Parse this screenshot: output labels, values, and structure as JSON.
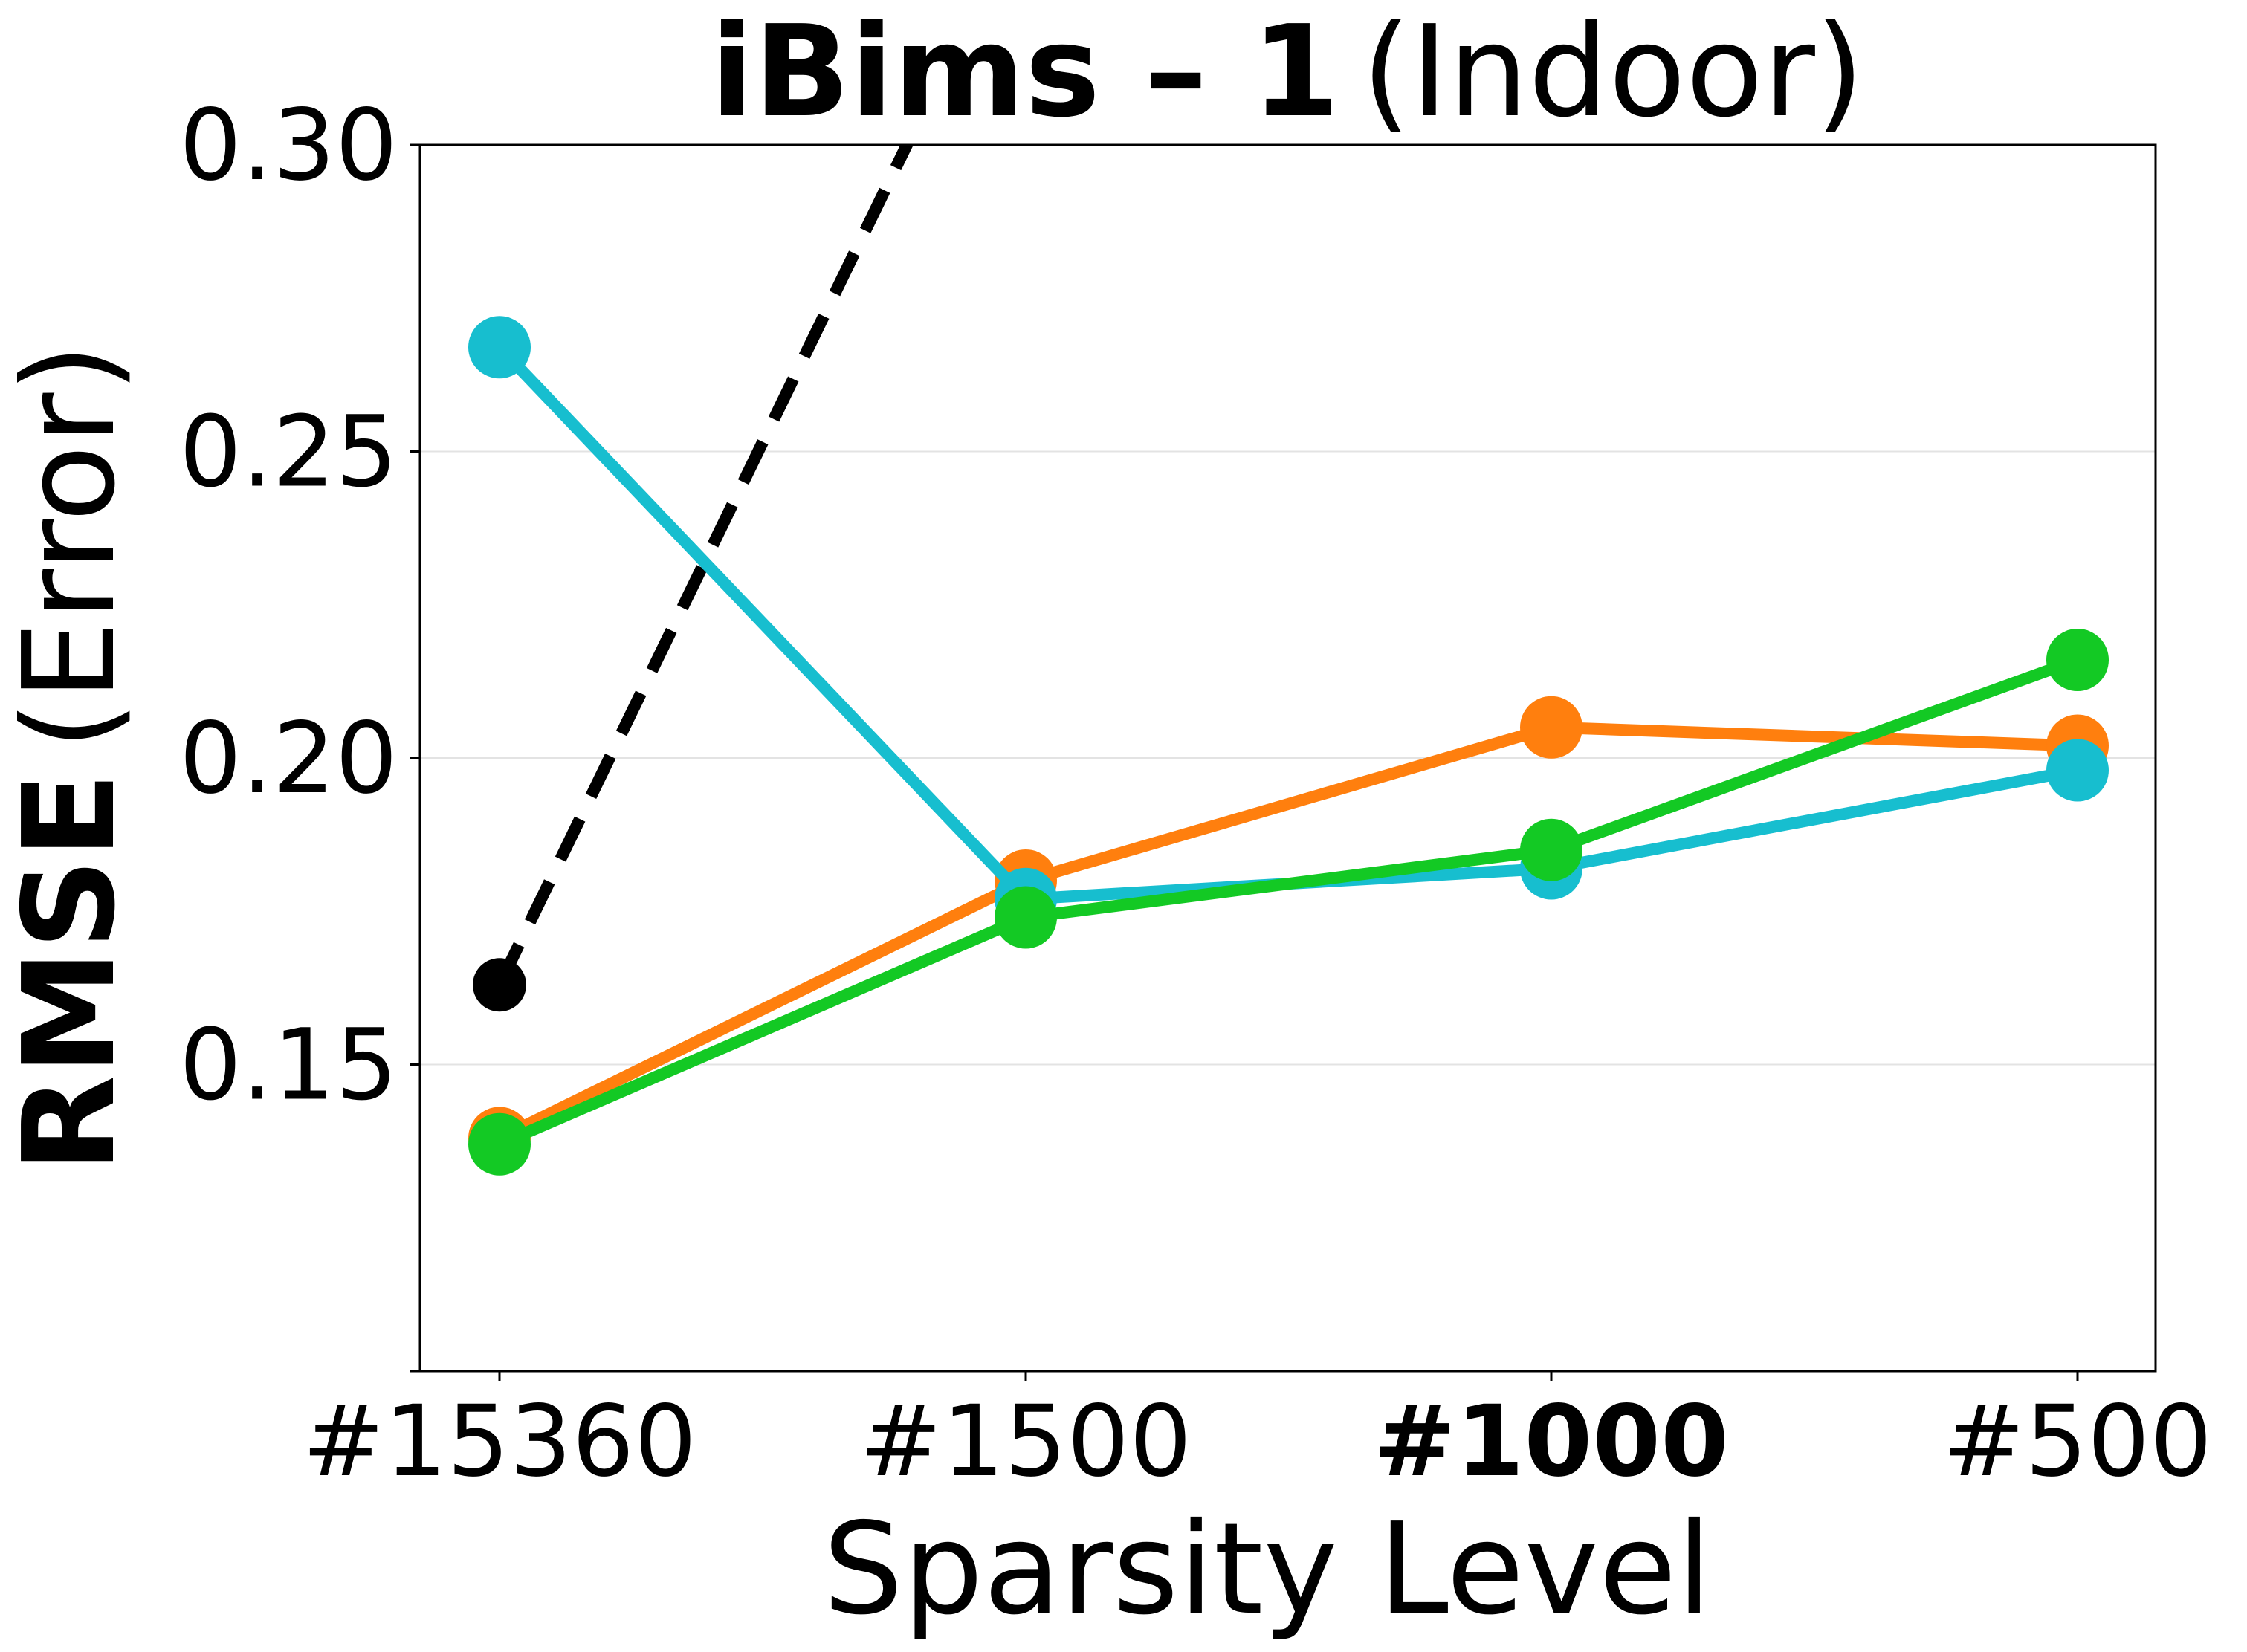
{
  "chart_data": {
    "type": "line",
    "title_bold": "iBims – 1",
    "title_rest": "(Indoor)",
    "xlabel": "Sparsity Level",
    "ylabel_bold": "RMSE",
    "ylabel_rest": "(Error)",
    "categories": [
      "#15360",
      "#1500",
      "#1000",
      "#500"
    ],
    "highlighted_category": "#1000",
    "ylim": [
      0.1,
      0.3
    ],
    "yticks": [
      "0.15",
      "0.20",
      "0.25",
      "0.30"
    ],
    "grid": "horizontal",
    "series": [
      {
        "color": "#000000",
        "style": "dashed",
        "marker_size": "small",
        "values": [
          0.163,
          0.34,
          null,
          null
        ]
      },
      {
        "color": "#ff7f0e",
        "style": "solid",
        "values": [
          0.138,
          0.18,
          0.205,
          0.202
        ]
      },
      {
        "color": "#17becf",
        "style": "solid",
        "values": [
          0.267,
          0.177,
          0.182,
          0.198
        ]
      },
      {
        "color": "#13c924",
        "style": "solid",
        "values": [
          0.137,
          0.174,
          0.185,
          0.216
        ]
      }
    ]
  }
}
